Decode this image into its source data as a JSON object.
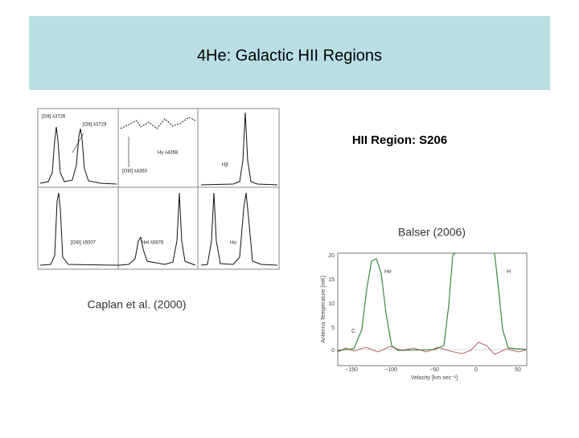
{
  "header": {
    "title": "4He: Galactic HII Regions"
  },
  "left_figure": {
    "caption": "Caplan et al. (2000)",
    "labels": [
      "[OII] λ3726",
      "[OII] λ3729",
      "Hγ λ4358",
      "[OIII] λ4363",
      "Hβ",
      "[OIII] λ5007",
      "HeI λ5876",
      "Hα"
    ]
  },
  "right_figure": {
    "heading": "HII Region: S206",
    "caption": "Balser (2006)",
    "y_axis_label": "Antenna Temperature [mK]",
    "x_axis_label": "Velocity [km sec⁻¹]",
    "yticks": [
      "20",
      "15",
      "10",
      "5",
      "0"
    ],
    "xticks": [
      "−150",
      "−100",
      "−50",
      "0",
      "50"
    ],
    "line_labels": [
      "He",
      "H",
      "C"
    ]
  }
}
